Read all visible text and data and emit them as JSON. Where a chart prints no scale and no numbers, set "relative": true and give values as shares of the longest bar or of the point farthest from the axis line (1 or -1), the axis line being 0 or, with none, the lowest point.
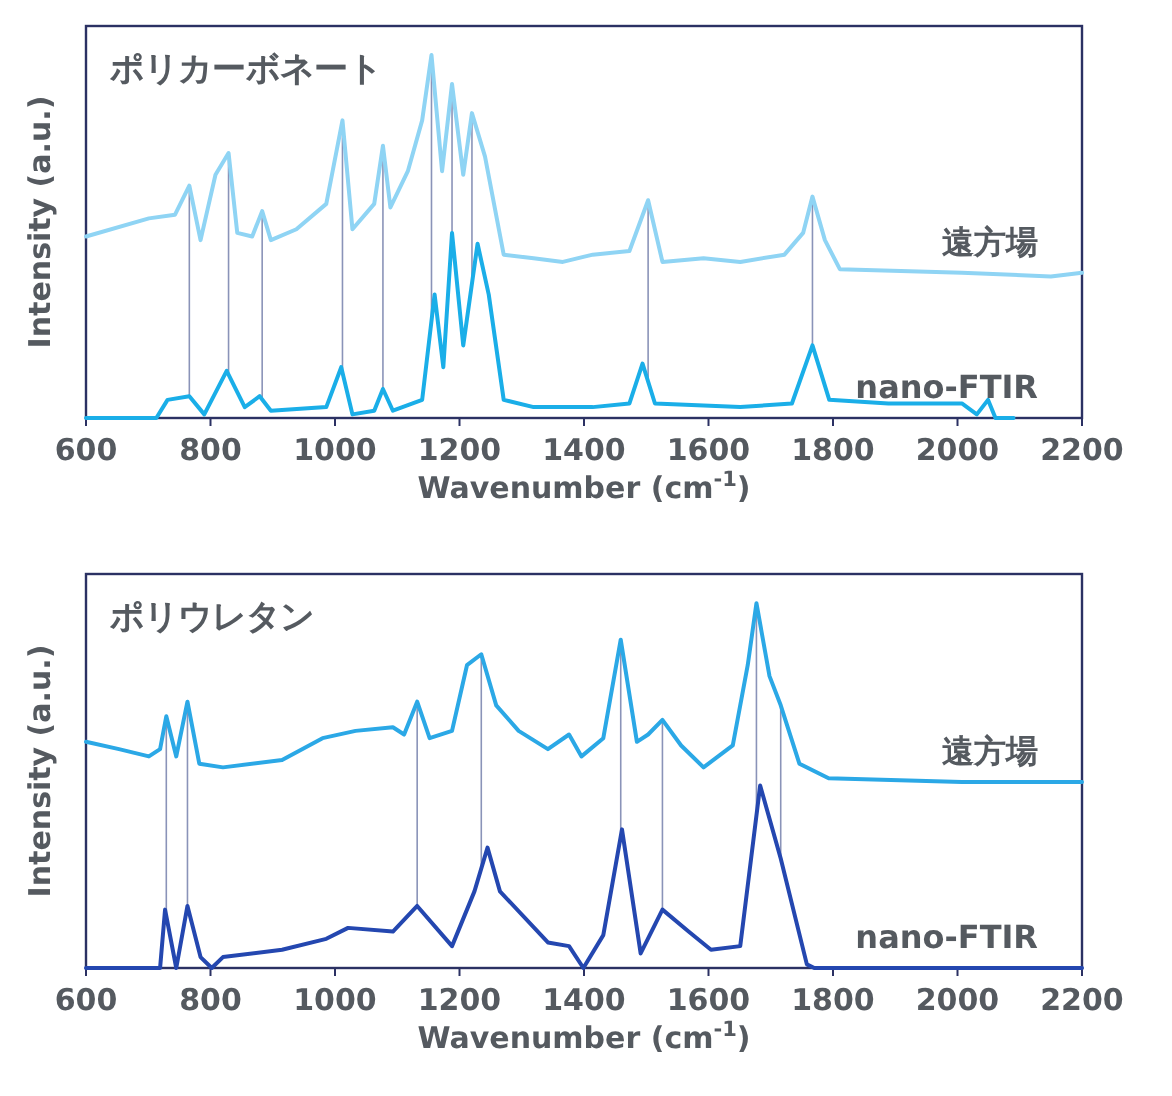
{
  "chart_data": [
    {
      "type": "line",
      "title": "ポリカーボネート",
      "xlabel": "Wavenumber (cm$^{-1}$)",
      "ylabel": "Intensity (a.u.)",
      "relative": true,
      "xlim": [
        600,
        2200
      ],
      "xticks": [
        600,
        800,
        1000,
        1200,
        1400,
        1600,
        1800,
        2000,
        2200
      ],
      "series": [
        {
          "name": "遠方場",
          "color": "#8fd4f4",
          "x": [
            600,
            701,
            743,
            766,
            784,
            808,
            829,
            843,
            867,
            883,
            897,
            938,
            986,
            1012,
            1028,
            1063,
            1077,
            1089,
            1117,
            1140,
            1155,
            1172,
            1188,
            1206,
            1220,
            1241,
            1271,
            1319,
            1366,
            1414,
            1473,
            1503,
            1526,
            1592,
            1651,
            1722,
            1752,
            1767,
            1787,
            1811,
            2007,
            2150,
            2200
          ],
          "values": [
            0.5,
            0.55,
            0.56,
            0.64,
            0.49,
            0.67,
            0.73,
            0.51,
            0.5,
            0.57,
            0.49,
            0.52,
            0.59,
            0.82,
            0.52,
            0.59,
            0.75,
            0.58,
            0.68,
            0.82,
            1.0,
            0.68,
            0.92,
            0.67,
            0.84,
            0.72,
            0.45,
            0.44,
            0.43,
            0.45,
            0.46,
            0.6,
            0.43,
            0.44,
            0.43,
            0.45,
            0.51,
            0.61,
            0.49,
            0.41,
            0.4,
            0.39,
            0.4
          ]
        },
        {
          "name": "nano-FTIR",
          "color": "#1aaee8",
          "x": [
            600,
            713,
            731,
            766,
            790,
            826,
            855,
            879,
            897,
            986,
            1010,
            1028,
            1063,
            1077,
            1093,
            1140,
            1160,
            1174,
            1188,
            1206,
            1229,
            1247,
            1271,
            1319,
            1414,
            1473,
            1494,
            1514,
            1651,
            1734,
            1767,
            1794,
            1889,
            2007,
            2031,
            2049,
            2061,
            2090
          ],
          "values": [
            0,
            0,
            0.05,
            0.06,
            0.01,
            0.13,
            0.03,
            0.06,
            0.02,
            0.03,
            0.14,
            0.01,
            0.02,
            0.08,
            0.02,
            0.05,
            0.34,
            0.14,
            0.51,
            0.2,
            0.48,
            0.34,
            0.05,
            0.03,
            0.03,
            0.04,
            0.15,
            0.04,
            0.03,
            0.04,
            0.2,
            0.05,
            0.04,
            0.04,
            0.01,
            0.05,
            0,
            0
          ]
        }
      ],
      "ref_lines": [
        {
          "axis": "x",
          "value": 766,
          "color": "#8a93b8"
        },
        {
          "axis": "x",
          "value": 829,
          "color": "#8a93b8"
        },
        {
          "axis": "x",
          "value": 883,
          "color": "#8a93b8"
        },
        {
          "axis": "x",
          "value": 1012,
          "color": "#8a93b8"
        },
        {
          "axis": "x",
          "value": 1077,
          "color": "#8a93b8"
        },
        {
          "axis": "x",
          "value": 1155,
          "color": "#8a93b8"
        },
        {
          "axis": "x",
          "value": 1188,
          "color": "#8a93b8"
        },
        {
          "axis": "x",
          "value": 1220,
          "color": "#8a93b8"
        },
        {
          "axis": "x",
          "value": 1503,
          "color": "#8a93b8"
        },
        {
          "axis": "x",
          "value": 1767,
          "color": "#8a93b8"
        }
      ]
    },
    {
      "type": "line",
      "title": "ポリウレタン",
      "xlabel": "Wavenumber (cm$^{-1}$)",
      "ylabel": "Intensity (a.u.)",
      "relative": true,
      "xlim": [
        600,
        2200
      ],
      "xticks": [
        600,
        800,
        1000,
        1200,
        1400,
        1600,
        1800,
        2000,
        2200
      ],
      "series": [
        {
          "name": "遠方場",
          "color": "#2ba8e6",
          "x": [
            600,
            653,
            701,
            719,
            729,
            745,
            763,
            782,
            820,
            915,
            980,
            1033,
            1093,
            1111,
            1132,
            1152,
            1188,
            1212,
            1235,
            1259,
            1295,
            1342,
            1376,
            1396,
            1431,
            1459,
            1485,
            1503,
            1526,
            1556,
            1592,
            1639,
            1663,
            1677,
            1698,
            1716,
            1746,
            1793,
            2007,
            2200
          ],
          "values": [
            0.62,
            0.6,
            0.58,
            0.6,
            0.69,
            0.58,
            0.73,
            0.56,
            0.55,
            0.57,
            0.63,
            0.65,
            0.66,
            0.64,
            0.73,
            0.63,
            0.65,
            0.83,
            0.86,
            0.72,
            0.65,
            0.6,
            0.64,
            0.58,
            0.63,
            0.9,
            0.62,
            0.64,
            0.68,
            0.61,
            0.55,
            0.61,
            0.83,
            1.0,
            0.8,
            0.72,
            0.56,
            0.52,
            0.51,
            0.51
          ]
        },
        {
          "name": "nano-FTIR",
          "color": "#2447b0",
          "x": [
            600,
            719,
            727,
            745,
            763,
            784,
            802,
            820,
            915,
            986,
            1021,
            1093,
            1132,
            1188,
            1224,
            1245,
            1265,
            1342,
            1376,
            1399,
            1431,
            1461,
            1491,
            1526,
            1568,
            1604,
            1651,
            1683,
            1716,
            1758,
            1770,
            2200
          ],
          "values": [
            0,
            0,
            0.16,
            0,
            0.17,
            0.03,
            0,
            0.03,
            0.05,
            0.08,
            0.11,
            0.1,
            0.17,
            0.06,
            0.21,
            0.33,
            0.21,
            0.07,
            0.06,
            0,
            0.09,
            0.38,
            0.04,
            0.16,
            0.1,
            0.05,
            0.06,
            0.5,
            0.3,
            0.01,
            0,
            0
          ]
        }
      ],
      "ref_lines": [
        {
          "axis": "x",
          "value": 729,
          "color": "#8a93b8"
        },
        {
          "axis": "x",
          "value": 763,
          "color": "#8a93b8"
        },
        {
          "axis": "x",
          "value": 1132,
          "color": "#8a93b8"
        },
        {
          "axis": "x",
          "value": 1235,
          "color": "#8a93b8"
        },
        {
          "axis": "x",
          "value": 1459,
          "color": "#8a93b8"
        },
        {
          "axis": "x",
          "value": 1526,
          "color": "#8a93b8"
        },
        {
          "axis": "x",
          "value": 1677,
          "color": "#8a93b8"
        },
        {
          "axis": "x",
          "value": 1716,
          "color": "#8a93b8"
        }
      ]
    }
  ]
}
